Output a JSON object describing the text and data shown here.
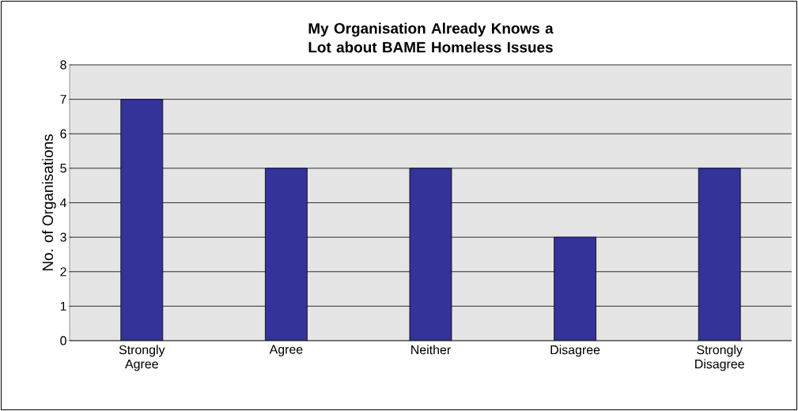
{
  "chart_data": {
    "type": "bar",
    "title": "My Organisation Already Knows a Lot about BAME Homeless Issues",
    "ylabel": "No. of Organisations",
    "categories": [
      "Strongly Agree",
      "Agree",
      "Neither",
      "Disagree",
      "Strongly Disagree"
    ],
    "values": [
      7,
      5,
      5,
      3,
      5
    ],
    "color": "#333399",
    "ylim": [
      0,
      8
    ],
    "yticks": [
      0,
      1,
      2,
      3,
      4,
      5,
      6,
      7,
      8
    ],
    "grid": "y"
  }
}
